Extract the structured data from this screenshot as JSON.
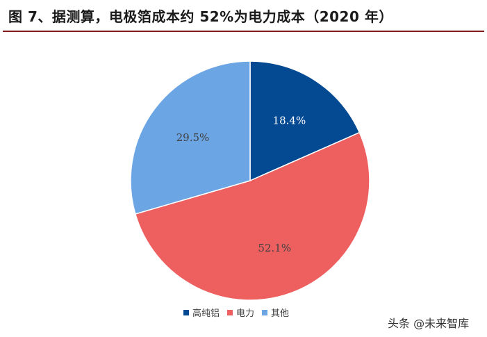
{
  "title": "图 7、据测算，电极箔成本约 52%为电力成本（2020 年）",
  "watermark": "头条 @未来智库",
  "chart_data": {
    "type": "pie",
    "title": "",
    "start_angle_deg": 0,
    "direction": "clockwise",
    "slices": [
      {
        "name": "高纯铝",
        "value": 18.4,
        "label": "18.4%",
        "color": "#034A93",
        "label_color": "#ffffff"
      },
      {
        "name": "电力",
        "value": 52.1,
        "label": "52.1%",
        "color": "#EE6060",
        "label_color": "#404040"
      },
      {
        "name": "其他",
        "value": 29.5,
        "label": "29.5%",
        "color": "#6BA5E4",
        "label_color": "#404040"
      }
    ],
    "legend": {
      "position": "bottom",
      "items": [
        "高纯铝",
        "电力",
        "其他"
      ]
    }
  }
}
